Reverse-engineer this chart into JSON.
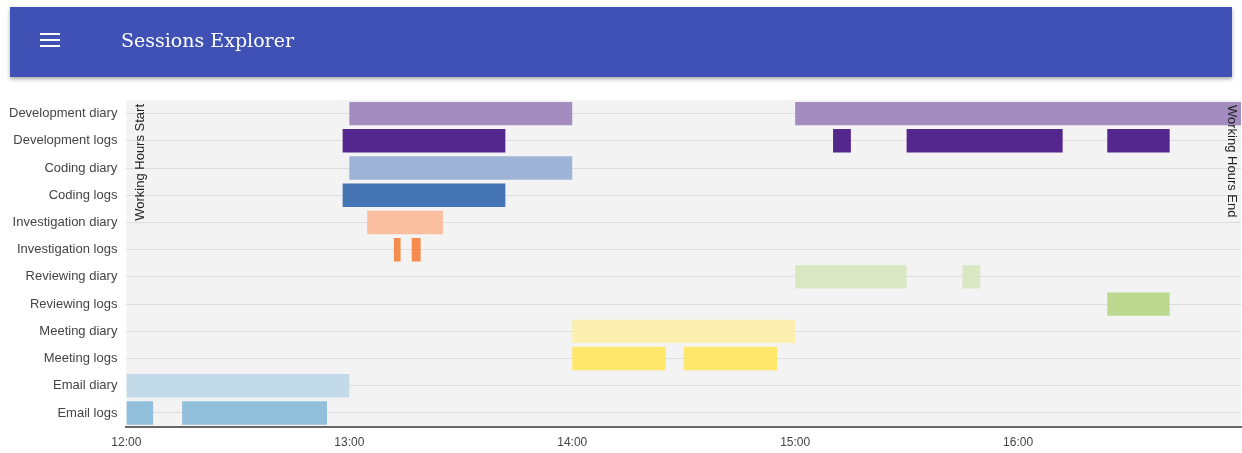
{
  "chart_data": {
    "type": "bar",
    "orientation": "horizontal",
    "title": "Sessions Explorer",
    "categories": [
      "Development diary",
      "Development logs",
      "Coding diary",
      "Coding logs",
      "Investigation diary",
      "Investigation logs",
      "Reviewing diary",
      "Reviewing logs",
      "Meeting diary",
      "Meeting logs",
      "Email diary",
      "Email logs"
    ],
    "series": [
      {
        "colors": [
          "#a48bc0",
          "#54278f",
          "#9db4d6",
          "#4575b4",
          "#f9bfa0",
          "#f58b4c",
          "#d9e8c3",
          "#bcd98f",
          "#fbefb0",
          "#fee86c",
          "#c3dbe8",
          "#92bfdc"
        ],
        "base": [
          13,
          12.97,
          13,
          12.97,
          13.08,
          13.2,
          15,
          16.4,
          14,
          14,
          12,
          12
        ],
        "values": [
          1,
          0.73,
          1,
          0.73,
          0.34,
          0.03,
          0.5,
          0.28,
          1,
          0.42,
          1,
          0.12
        ]
      },
      {
        "colors": [
          "#a48bc0",
          "#54278f",
          "#9db4d6",
          "#4575b4",
          "#f9bfa0",
          "#f58b4c",
          "#d9e8c3",
          "#bcd98f",
          "#fbefb0",
          "#fee86c",
          "#c3dbe8",
          "#92bfdc"
        ],
        "base": [
          15,
          15.17,
          null,
          null,
          null,
          13.28,
          15.75,
          null,
          null,
          14.5,
          null,
          12.25
        ],
        "values": [
          2,
          0.08,
          null,
          null,
          null,
          0.04,
          0.08,
          null,
          null,
          0.42,
          null,
          0.65
        ]
      },
      {
        "colors": [
          "#a48bc0",
          "#54278f",
          "#9db4d6",
          "#4575b4",
          "#f9bfa0",
          "#f58b4c",
          "#d9e8c3",
          "#bcd98f",
          "#fbefb0",
          "#fee86c",
          "#c3dbe8",
          "#92bfdc"
        ],
        "base": [
          null,
          15.5,
          null,
          null,
          null,
          null,
          null,
          null,
          null,
          null,
          null,
          null
        ],
        "values": [
          null,
          0.7,
          null,
          null,
          null,
          null,
          null,
          null,
          null,
          null,
          null,
          null
        ]
      },
      {
        "colors": [
          "#a48bc0",
          "#54278f",
          "#9db4d6",
          "#4575b4",
          "#f9bfa0",
          "#f58b4c",
          "#d9e8c3",
          "#bcd98f",
          "#fbefb0",
          "#fee86c",
          "#c3dbe8",
          "#92bfdc"
        ],
        "base": [
          null,
          16.4,
          null,
          null,
          null,
          null,
          null,
          null,
          null,
          null,
          null,
          null
        ],
        "values": [
          null,
          0.28,
          null,
          null,
          null,
          null,
          null,
          null,
          null,
          null,
          null,
          null
        ]
      }
    ],
    "xlim": [
      12,
      17
    ],
    "xticks": [
      {
        "value": 12,
        "label": "12:00"
      },
      {
        "value": 13,
        "label": "13:00"
      },
      {
        "value": 14,
        "label": "14:00"
      },
      {
        "value": 15,
        "label": "15:00"
      },
      {
        "value": 16,
        "label": "16:00"
      }
    ],
    "annotations": [
      "Working Hours Start",
      "Working Hours End"
    ],
    "grid": "y",
    "legend": false
  }
}
